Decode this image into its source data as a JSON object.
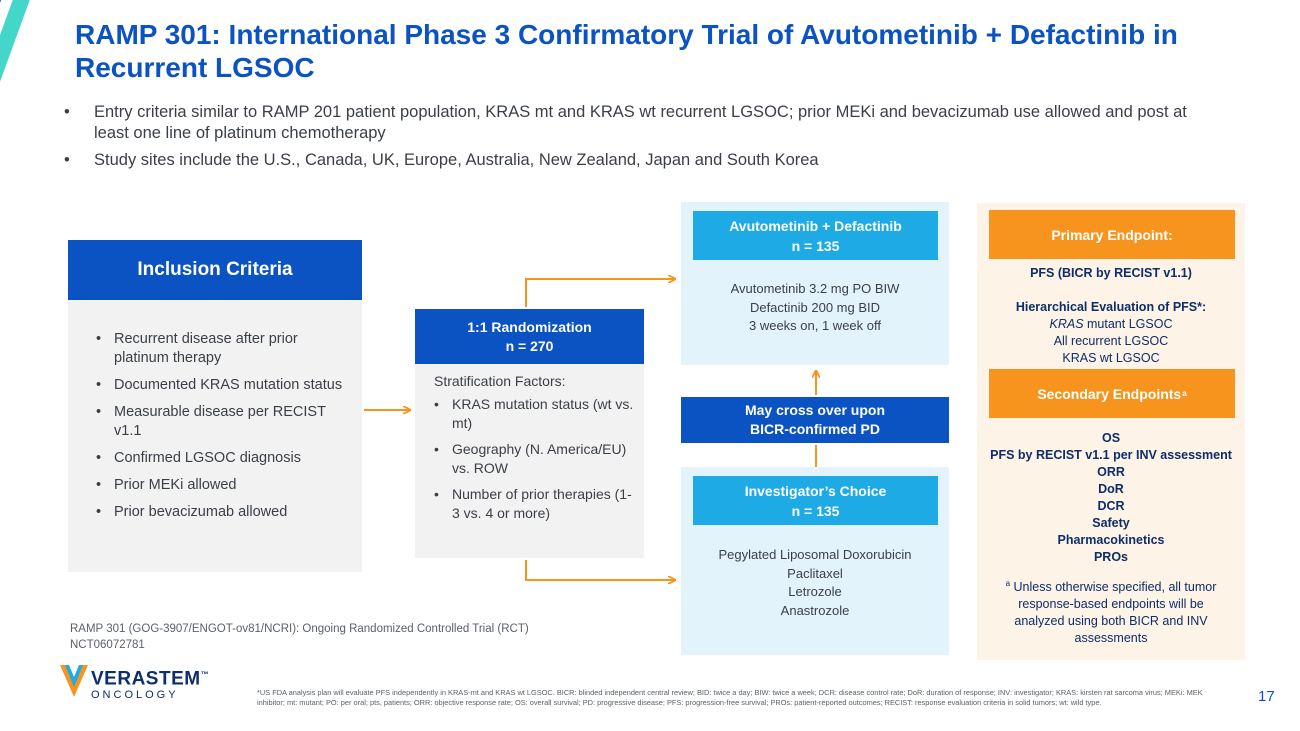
{
  "title": "RAMP 301: International Phase 3 Confirmatory Trial of Avutometinib + Defactinib in Recurrent LGSOC",
  "bullets": [
    "Entry criteria similar to RAMP 201 patient population, KRAS mt and KRAS wt recurrent LGSOC; prior MEKi and bevacizumab use allowed and post at least one line of platinum chemotherapy",
    "Study sites include the U.S., Canada, UK, Europe, Australia, New Zealand, Japan and South Korea"
  ],
  "inclusion": {
    "header": "Inclusion Criteria",
    "items": [
      "Recurrent disease after prior platinum therapy",
      "Documented KRAS mutation status",
      "Measurable disease per RECIST v1.1",
      "Confirmed LGSOC diagnosis",
      "Prior MEKi allowed",
      "Prior bevacizumab allowed"
    ]
  },
  "randomization": {
    "header_line1": "1:1 Randomization",
    "header_line2": "n = 270",
    "factors_label": "Stratification Factors:",
    "factors": [
      "KRAS mutation status (wt vs. mt)",
      "Geography (N. America/EU) vs. ROW",
      "Number of prior therapies (1-3 vs. 4 or more)"
    ]
  },
  "arm1": {
    "header_line1": "Avutometinib + Defactinib",
    "header_line2": "n = 135",
    "lines": [
      "Avutometinib 3.2 mg PO BIW",
      "Defactinib 200 mg BID",
      "3 weeks on, 1 week off"
    ]
  },
  "crossover": {
    "line1": "May cross over upon",
    "line2": "BICR-confirmed PD"
  },
  "arm2": {
    "header_line1": "Investigator’s Choice",
    "header_line2": "n = 135",
    "lines": [
      "Pegylated Liposomal Doxorubicin",
      "Paclitaxel",
      "Letrozole",
      "Anastrozole"
    ]
  },
  "primary": {
    "header": "Primary Endpoint:",
    "main": "PFS (BICR by RECIST v1.1)",
    "hier_label": "Hierarchical Evaluation of PFS*:",
    "hier_kras": "KRAS",
    "hier_item1_rest": " mutant LGSOC",
    "hier_item2": "All recurrent LGSOC",
    "hier_item3": "KRAS wt LGSOC"
  },
  "secondary": {
    "header": "Secondary Endpoints",
    "header_sup": "a",
    "items": [
      "OS",
      "PFS by RECIST v1.1 per INV assessment",
      "ORR",
      "DoR",
      "DCR",
      "Safety",
      "Pharmacokinetics",
      "PROs"
    ],
    "note_sup": "a",
    "note": " Unless otherwise specified, all tumor response-based endpoints will be analyzed using both BICR and INV assessments"
  },
  "footnote_left": "RAMP 301 (GOG-3907/ENGOT-ov81/NCRI): Ongoing Randomized Controlled Trial (RCT) NCT06072781",
  "logo": {
    "name": "VERASTEM",
    "tm": "™",
    "sub": "ONCOLOGY"
  },
  "tiny_footnote": "*US FDA analysis plan will evaluate PFS independently in KRAS-mt and KRAS wt LGSOC. BICR: blinded independent central review; BID: twice a day; BIW: twice a week; DCR: disease control rate; DoR: duration of response; INV: investigator; KRAS: kirsten rat sarcoma virus; MEKi: MEK inhibitor; mt: mutant; PO: per oral; pts, patients; ORR: objective response rate; OS: overall survival; PD: progressive disease; PFS: progression-free survival; PROs: patient-reported outcomes; RECIST: response evaluation criteria in solid tumors; wt: wild type.",
  "page_number": "17",
  "colors": {
    "primary_blue": "#0b52c3",
    "light_blue": "#1eaae4",
    "orange": "#f7941e",
    "teal": "#43d6c9",
    "navy": "#0d2d6b"
  }
}
